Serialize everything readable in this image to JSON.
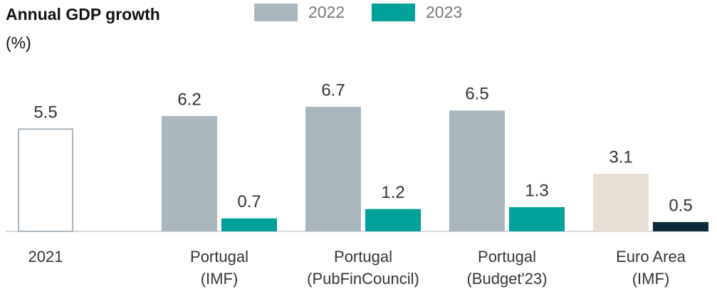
{
  "chart_data": {
    "type": "bar",
    "title": "Annual GDP growth",
    "subtitle": "(%)",
    "categories": [
      [
        "2021"
      ],
      [
        "Portugal",
        "(IMF)"
      ],
      [
        "Portugal",
        "(PubFinCouncil)"
      ],
      [
        "Portugal",
        "(Budget'23)"
      ],
      [
        "Euro Area",
        "(IMF)"
      ]
    ],
    "series": [
      {
        "name": "2021",
        "legend": false,
        "color": "#ffffff",
        "stroke": "#a9b5bd",
        "values": [
          5.5,
          null,
          null,
          null,
          null
        ]
      },
      {
        "name": "2022",
        "legend": true,
        "color": "#aab6be",
        "colors": [
          "#aab6be",
          "#aab6be",
          "#aab6be",
          "#aab6be",
          "#e8e0d4"
        ],
        "values": [
          null,
          6.2,
          6.7,
          6.5,
          3.1
        ]
      },
      {
        "name": "2023",
        "legend": true,
        "color": "#00a19a",
        "colors": [
          "#00a19a",
          "#00a19a",
          "#00a19a",
          "#00a19a",
          "#0c2a3a"
        ],
        "values": [
          null,
          0.7,
          1.2,
          1.3,
          0.5
        ]
      }
    ],
    "ylim": [
      0,
      8
    ]
  }
}
